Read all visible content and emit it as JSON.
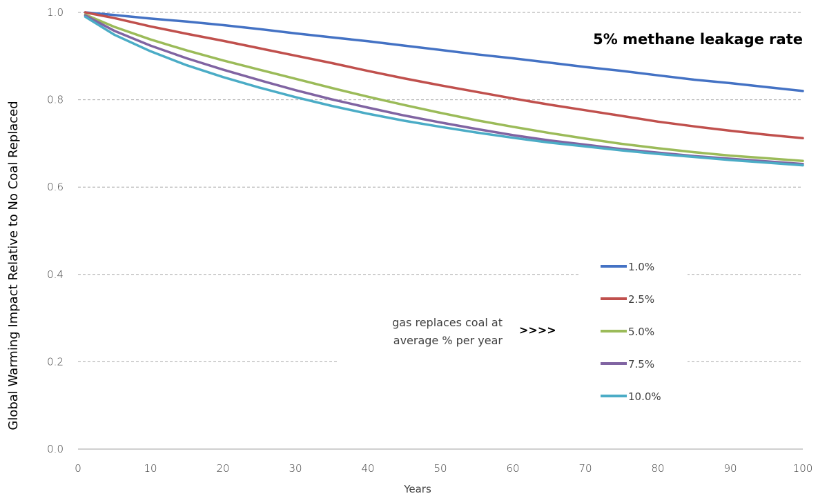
{
  "chart_data": {
    "type": "line",
    "title": "5% methane leakage rate",
    "xlabel": "Years",
    "ylabel": "Global Warming Impact Relative to No Coal Replaced",
    "xlim": [
      0,
      100
    ],
    "ylim": [
      0,
      1.0
    ],
    "x_ticks": [
      "0",
      "10",
      "20",
      "30",
      "40",
      "50",
      "60",
      "70",
      "80",
      "90",
      "100"
    ],
    "y_ticks": [
      "0.0",
      "0.2",
      "0.4",
      "0.6",
      "0.8",
      "1.0"
    ],
    "grid": "horizontal dashed",
    "legend_position": "center-right",
    "x": [
      1,
      5,
      10,
      15,
      20,
      25,
      30,
      35,
      40,
      45,
      50,
      55,
      60,
      65,
      70,
      75,
      80,
      85,
      90,
      95,
      100
    ],
    "series": [
      {
        "name": "1.0%",
        "color": "#4472c4",
        "values": [
          1.0,
          0.994,
          0.986,
          0.979,
          0.971,
          0.962,
          0.952,
          0.943,
          0.934,
          0.924,
          0.914,
          0.904,
          0.895,
          0.885,
          0.875,
          0.866,
          0.856,
          0.846,
          0.838,
          0.829,
          0.82
        ]
      },
      {
        "name": "2.5%",
        "color": "#c0504d",
        "values": [
          1.0,
          0.987,
          0.968,
          0.951,
          0.935,
          0.918,
          0.901,
          0.884,
          0.866,
          0.849,
          0.833,
          0.818,
          0.803,
          0.789,
          0.776,
          0.763,
          0.75,
          0.739,
          0.729,
          0.72,
          0.712
        ]
      },
      {
        "name": "5.0%",
        "color": "#9bbb59",
        "values": [
          0.995,
          0.967,
          0.938,
          0.913,
          0.89,
          0.869,
          0.848,
          0.827,
          0.807,
          0.788,
          0.77,
          0.753,
          0.738,
          0.724,
          0.711,
          0.699,
          0.689,
          0.68,
          0.672,
          0.666,
          0.66
        ]
      },
      {
        "name": "7.5%",
        "color": "#8064a2",
        "values": [
          0.993,
          0.958,
          0.924,
          0.895,
          0.869,
          0.845,
          0.822,
          0.801,
          0.782,
          0.764,
          0.748,
          0.733,
          0.719,
          0.707,
          0.697,
          0.687,
          0.679,
          0.671,
          0.665,
          0.659,
          0.653
        ]
      },
      {
        "name": "10.0%",
        "color": "#4bacc6",
        "values": [
          0.99,
          0.949,
          0.911,
          0.879,
          0.852,
          0.828,
          0.806,
          0.786,
          0.768,
          0.752,
          0.738,
          0.725,
          0.713,
          0.702,
          0.693,
          0.684,
          0.676,
          0.669,
          0.662,
          0.656,
          0.65
        ]
      }
    ],
    "annotation": {
      "line1": "gas replaces coal at",
      "line2": "average % per year",
      "arrow": ">>>>"
    }
  }
}
